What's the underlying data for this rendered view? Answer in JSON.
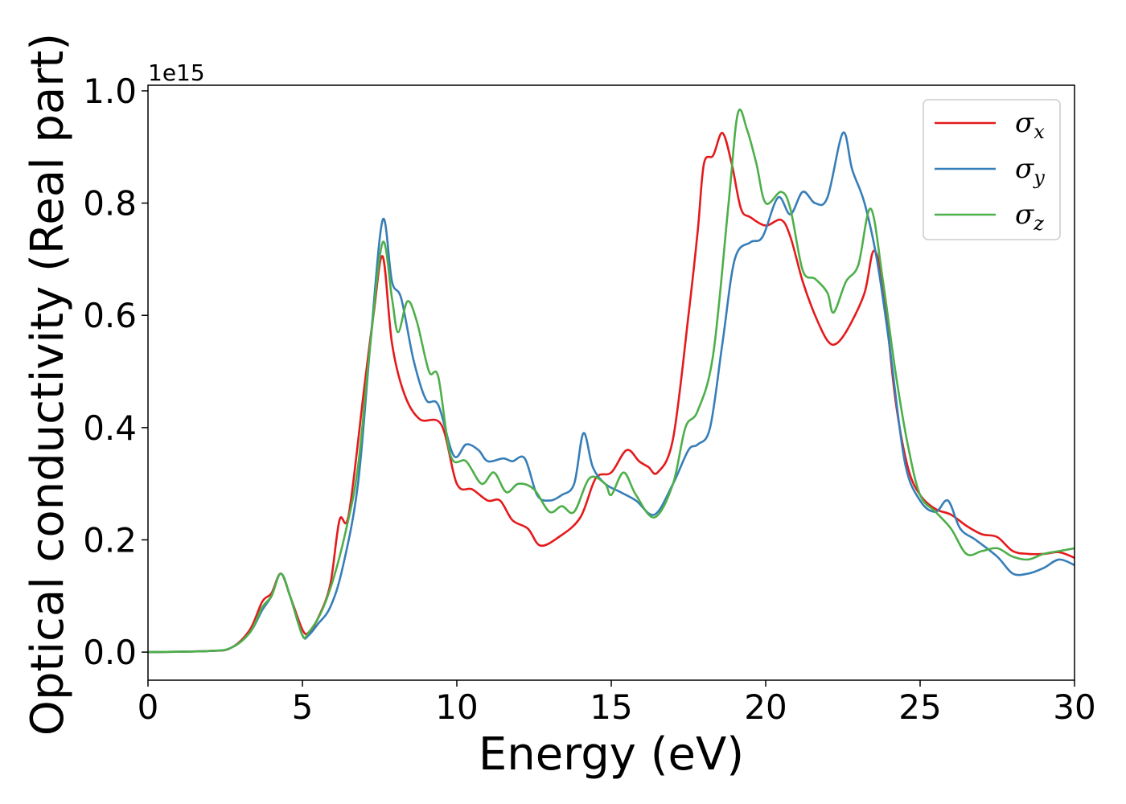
{
  "chart_data": {
    "type": "line",
    "title": "",
    "xlabel": "Energy (eV)",
    "ylabel": "Optical conductivity (Real part)",
    "offset_text": "1e15",
    "xlim": [
      0,
      30
    ],
    "ylim": [
      -0.05,
      1.01
    ],
    "xticks": [
      0,
      5,
      10,
      15,
      20,
      25,
      30
    ],
    "yticks": [
      0.0,
      0.2,
      0.4,
      0.6,
      0.8,
      1.0
    ],
    "xtick_labels": [
      "0",
      "5",
      "10",
      "15",
      "20",
      "25",
      "30"
    ],
    "ytick_labels": [
      "0.0",
      "0.2",
      "0.4",
      "0.6",
      "0.8",
      "1.0"
    ],
    "grid": false,
    "legend_position": "top-right",
    "series": [
      {
        "name": "σx",
        "symbol": "σ",
        "subscript": "x",
        "color": "#e41a1c",
        "points": [
          [
            0,
            0
          ],
          [
            2,
            0.002
          ],
          [
            2.7,
            0.008
          ],
          [
            3.3,
            0.04
          ],
          [
            3.7,
            0.09
          ],
          [
            4.0,
            0.105
          ],
          [
            4.3,
            0.14
          ],
          [
            4.6,
            0.1
          ],
          [
            5.0,
            0.04
          ],
          [
            5.2,
            0.035
          ],
          [
            5.5,
            0.06
          ],
          [
            5.9,
            0.12
          ],
          [
            6.2,
            0.235
          ],
          [
            6.5,
            0.245
          ],
          [
            7.0,
            0.47
          ],
          [
            7.3,
            0.6
          ],
          [
            7.6,
            0.705
          ],
          [
            7.9,
            0.55
          ],
          [
            8.3,
            0.46
          ],
          [
            8.8,
            0.415
          ],
          [
            9.5,
            0.405
          ],
          [
            10.0,
            0.3
          ],
          [
            10.5,
            0.29
          ],
          [
            11.0,
            0.27
          ],
          [
            11.4,
            0.27
          ],
          [
            11.8,
            0.235
          ],
          [
            12.3,
            0.22
          ],
          [
            12.7,
            0.19
          ],
          [
            13.3,
            0.205
          ],
          [
            14.0,
            0.24
          ],
          [
            14.5,
            0.31
          ],
          [
            15.0,
            0.32
          ],
          [
            15.5,
            0.36
          ],
          [
            15.9,
            0.34
          ],
          [
            16.2,
            0.33
          ],
          [
            16.5,
            0.32
          ],
          [
            17.0,
            0.38
          ],
          [
            17.5,
            0.6
          ],
          [
            17.8,
            0.75
          ],
          [
            18.0,
            0.87
          ],
          [
            18.3,
            0.885
          ],
          [
            18.6,
            0.925
          ],
          [
            18.9,
            0.87
          ],
          [
            19.2,
            0.79
          ],
          [
            19.5,
            0.775
          ],
          [
            20.0,
            0.76
          ],
          [
            20.5,
            0.77
          ],
          [
            20.8,
            0.74
          ],
          [
            21.2,
            0.66
          ],
          [
            21.6,
            0.6
          ],
          [
            22.0,
            0.555
          ],
          [
            22.3,
            0.55
          ],
          [
            22.7,
            0.58
          ],
          [
            23.2,
            0.64
          ],
          [
            23.5,
            0.715
          ],
          [
            23.8,
            0.65
          ],
          [
            24.2,
            0.45
          ],
          [
            24.6,
            0.33
          ],
          [
            25.0,
            0.28
          ],
          [
            25.5,
            0.255
          ],
          [
            26.0,
            0.245
          ],
          [
            26.5,
            0.225
          ],
          [
            27.0,
            0.21
          ],
          [
            27.5,
            0.205
          ],
          [
            28.0,
            0.18
          ],
          [
            28.5,
            0.175
          ],
          [
            29.0,
            0.175
          ],
          [
            29.5,
            0.178
          ],
          [
            30.0,
            0.168
          ]
        ]
      },
      {
        "name": "σy",
        "symbol": "σ",
        "subscript": "y",
        "color": "#377eb8",
        "points": [
          [
            0,
            0
          ],
          [
            2,
            0.002
          ],
          [
            2.7,
            0.008
          ],
          [
            3.3,
            0.035
          ],
          [
            3.7,
            0.075
          ],
          [
            4.0,
            0.1
          ],
          [
            4.3,
            0.14
          ],
          [
            4.6,
            0.1
          ],
          [
            5.0,
            0.03
          ],
          [
            5.2,
            0.03
          ],
          [
            5.5,
            0.05
          ],
          [
            5.9,
            0.08
          ],
          [
            6.3,
            0.15
          ],
          [
            6.8,
            0.3
          ],
          [
            7.2,
            0.55
          ],
          [
            7.6,
            0.77
          ],
          [
            7.9,
            0.66
          ],
          [
            8.2,
            0.63
          ],
          [
            8.6,
            0.52
          ],
          [
            9.0,
            0.45
          ],
          [
            9.4,
            0.44
          ],
          [
            9.9,
            0.35
          ],
          [
            10.3,
            0.37
          ],
          [
            10.7,
            0.36
          ],
          [
            11.0,
            0.34
          ],
          [
            11.5,
            0.345
          ],
          [
            11.8,
            0.34
          ],
          [
            12.2,
            0.345
          ],
          [
            12.6,
            0.28
          ],
          [
            13.0,
            0.27
          ],
          [
            13.4,
            0.28
          ],
          [
            13.8,
            0.3
          ],
          [
            14.1,
            0.39
          ],
          [
            14.4,
            0.33
          ],
          [
            14.8,
            0.3
          ],
          [
            15.3,
            0.285
          ],
          [
            15.8,
            0.27
          ],
          [
            16.4,
            0.245
          ],
          [
            17.0,
            0.3
          ],
          [
            17.5,
            0.36
          ],
          [
            17.8,
            0.37
          ],
          [
            18.2,
            0.4
          ],
          [
            18.6,
            0.55
          ],
          [
            19.0,
            0.7
          ],
          [
            19.5,
            0.73
          ],
          [
            19.9,
            0.74
          ],
          [
            20.4,
            0.81
          ],
          [
            20.8,
            0.78
          ],
          [
            21.2,
            0.82
          ],
          [
            21.6,
            0.8
          ],
          [
            22.0,
            0.81
          ],
          [
            22.5,
            0.925
          ],
          [
            22.8,
            0.86
          ],
          [
            23.2,
            0.8
          ],
          [
            23.6,
            0.7
          ],
          [
            24.0,
            0.55
          ],
          [
            24.5,
            0.34
          ],
          [
            25.0,
            0.27
          ],
          [
            25.5,
            0.25
          ],
          [
            25.9,
            0.27
          ],
          [
            26.3,
            0.22
          ],
          [
            26.8,
            0.2
          ],
          [
            27.5,
            0.17
          ],
          [
            28.0,
            0.14
          ],
          [
            28.5,
            0.14
          ],
          [
            29.0,
            0.15
          ],
          [
            29.5,
            0.165
          ],
          [
            30.0,
            0.155
          ]
        ]
      },
      {
        "name": "σz",
        "symbol": "σ",
        "subscript": "z",
        "color": "#4daf4a",
        "points": [
          [
            0,
            0
          ],
          [
            2,
            0.002
          ],
          [
            2.7,
            0.008
          ],
          [
            3.3,
            0.035
          ],
          [
            3.7,
            0.08
          ],
          [
            4.0,
            0.1
          ],
          [
            4.3,
            0.14
          ],
          [
            4.6,
            0.1
          ],
          [
            5.0,
            0.03
          ],
          [
            5.2,
            0.035
          ],
          [
            5.6,
            0.07
          ],
          [
            6.0,
            0.13
          ],
          [
            6.4,
            0.215
          ],
          [
            6.8,
            0.33
          ],
          [
            7.2,
            0.55
          ],
          [
            7.6,
            0.73
          ],
          [
            7.9,
            0.63
          ],
          [
            8.1,
            0.57
          ],
          [
            8.4,
            0.625
          ],
          [
            8.7,
            0.59
          ],
          [
            9.1,
            0.5
          ],
          [
            9.4,
            0.49
          ],
          [
            9.8,
            0.35
          ],
          [
            10.3,
            0.34
          ],
          [
            10.8,
            0.3
          ],
          [
            11.2,
            0.32
          ],
          [
            11.6,
            0.285
          ],
          [
            12.0,
            0.3
          ],
          [
            12.5,
            0.29
          ],
          [
            13.0,
            0.25
          ],
          [
            13.4,
            0.26
          ],
          [
            13.8,
            0.25
          ],
          [
            14.3,
            0.31
          ],
          [
            14.8,
            0.3
          ],
          [
            15.0,
            0.28
          ],
          [
            15.4,
            0.32
          ],
          [
            15.8,
            0.28
          ],
          [
            16.4,
            0.24
          ],
          [
            17.0,
            0.3
          ],
          [
            17.4,
            0.4
          ],
          [
            17.8,
            0.43
          ],
          [
            18.3,
            0.53
          ],
          [
            18.8,
            0.8
          ],
          [
            19.1,
            0.96
          ],
          [
            19.4,
            0.93
          ],
          [
            19.7,
            0.87
          ],
          [
            20.0,
            0.8
          ],
          [
            20.5,
            0.82
          ],
          [
            20.8,
            0.79
          ],
          [
            21.2,
            0.68
          ],
          [
            21.6,
            0.665
          ],
          [
            22.0,
            0.64
          ],
          [
            22.2,
            0.605
          ],
          [
            22.6,
            0.66
          ],
          [
            23.0,
            0.69
          ],
          [
            23.4,
            0.79
          ],
          [
            23.8,
            0.66
          ],
          [
            24.2,
            0.5
          ],
          [
            24.6,
            0.37
          ],
          [
            25.0,
            0.28
          ],
          [
            25.5,
            0.25
          ],
          [
            26.0,
            0.22
          ],
          [
            26.5,
            0.175
          ],
          [
            27.0,
            0.18
          ],
          [
            27.5,
            0.185
          ],
          [
            28.0,
            0.17
          ],
          [
            28.5,
            0.165
          ],
          [
            29.0,
            0.175
          ],
          [
            29.5,
            0.18
          ],
          [
            30.0,
            0.185
          ]
        ]
      }
    ]
  }
}
